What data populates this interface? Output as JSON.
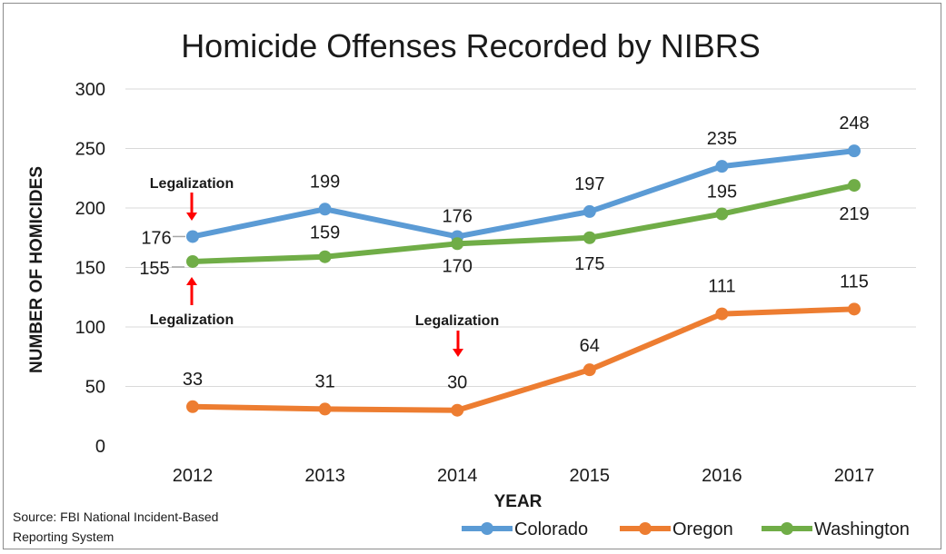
{
  "chart_data": {
    "type": "line",
    "title": "Homicide Offenses Recorded by NIBRS",
    "xlabel": "YEAR",
    "ylabel": "NUMBER OF HOMICIDES",
    "categories": [
      "2012",
      "2013",
      "2014",
      "2015",
      "2016",
      "2017"
    ],
    "ylim": [
      0,
      300
    ],
    "yticks": [
      0,
      50,
      100,
      150,
      200,
      250,
      300
    ],
    "grid": true,
    "legend_position": "bottom-right",
    "series": [
      {
        "name": "Colorado",
        "color": "#5b9bd5",
        "values": [
          176,
          199,
          176,
          197,
          235,
          248
        ]
      },
      {
        "name": "Oregon",
        "color": "#ed7d31",
        "values": [
          33,
          31,
          30,
          64,
          111,
          115
        ]
      },
      {
        "name": "Washington",
        "color": "#70ad47",
        "values": [
          155,
          159,
          170,
          175,
          195,
          219
        ]
      }
    ],
    "annotations": [
      {
        "text": "Legalization",
        "series": "Colorado",
        "year": "2012"
      },
      {
        "text": "Legalization",
        "series": "Washington",
        "year": "2012"
      },
      {
        "text": "Legalization",
        "series": "Oregon",
        "year": "2014"
      }
    ],
    "arrow_color": "#ff0000",
    "source": [
      "Source: FBI National Incident-Based",
      "Reporting System"
    ]
  }
}
